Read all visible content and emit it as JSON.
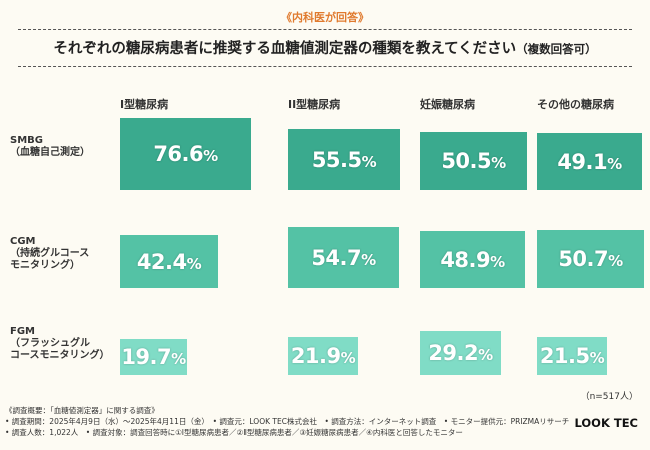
{
  "header": {
    "eyebrow": "《内科医が回答》",
    "title": "それぞれの糖尿病患者に推奨する血糖値測定器の種類を教えてください",
    "title_suffix": "（複数回答可）"
  },
  "chart_data": {
    "type": "bar",
    "title": "それぞれの糖尿病患者に推奨する血糖値測定器の種類を教えてください（複数回答可）",
    "categories": [
      "I型糖尿病",
      "II型糖尿病",
      "妊娠糖尿病",
      "その他の糖尿病"
    ],
    "rows": [
      {
        "label": [
          "SMBG",
          "（血糖自己測定）"
        ],
        "color": "#3aaa8e",
        "values": [
          76.6,
          55.5,
          50.5,
          49.1
        ]
      },
      {
        "label": [
          "CGM",
          "（持続グルコース",
          "モニタリング）"
        ],
        "color": "#54c2a5",
        "values": [
          42.4,
          54.7,
          48.9,
          50.7
        ]
      },
      {
        "label": [
          "FGM",
          "（フラッシュグル",
          "コースモニタリング）"
        ],
        "color": "#80dcc6",
        "values": [
          19.7,
          21.9,
          29.2,
          21.5
        ]
      }
    ],
    "unit": "%",
    "ylim": [
      0,
      100
    ],
    "note": "（n=517人）"
  },
  "footer": {
    "lines": [
      "《調査概要：「血糖値測定器」に関する調査》",
      "• 調査期間：2025年4月9日（水）～2025年4月11日（金）　• 調査元：LOOK TEC株式会社　• 調査方法：インターネット調査　• モニター提供元：PRIZMAリサーチ",
      "• 調査人数：1,022人　• 調査対象：調査回答時に①Ⅰ型糖尿病患者／②Ⅱ型糖尿病患者／③妊娠糖尿病患者／④内科医と回答したモニター"
    ],
    "logo": "LOOK TEC"
  }
}
